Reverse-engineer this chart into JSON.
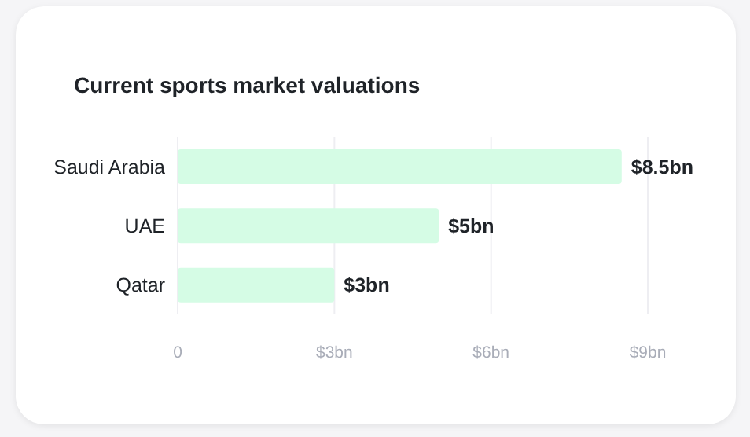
{
  "chart_data": {
    "type": "bar",
    "orientation": "horizontal",
    "title": "Current sports market valuations",
    "categories": [
      "Saudi Arabia",
      "UAE",
      "Qatar"
    ],
    "values": [
      8.5,
      5,
      3
    ],
    "value_labels": [
      "$8.5bn",
      "$5bn",
      "$3bn"
    ],
    "color": "#d5fce5",
    "xlim": [
      0,
      9
    ],
    "xticks": [
      0,
      {
        "value": 3,
        "label": "$3bn"
      },
      {
        "value": 6,
        "label": "$6bn"
      },
      {
        "value": 9,
        "label": "$9bn"
      }
    ],
    "grid": "x"
  }
}
